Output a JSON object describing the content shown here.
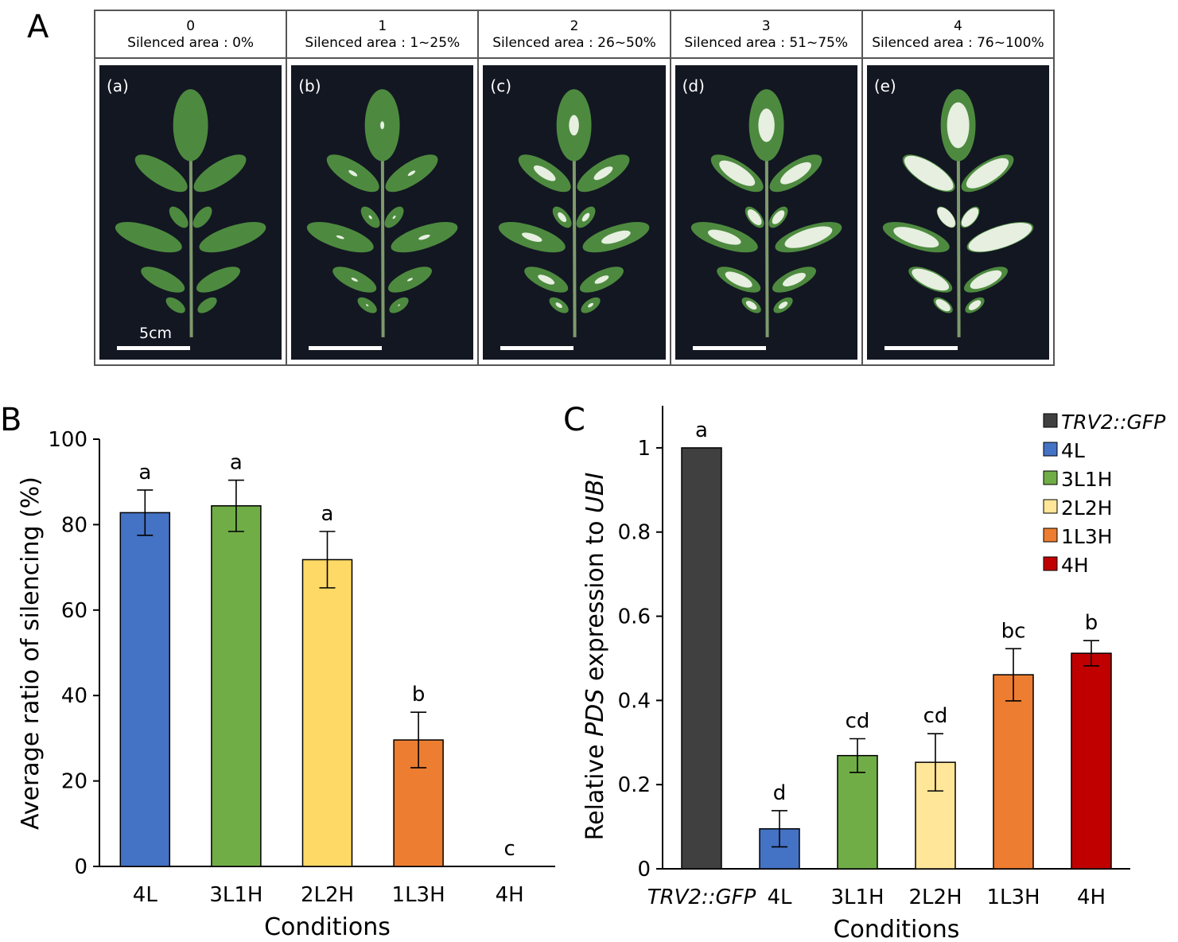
{
  "panels": {
    "a": "A",
    "b": "B",
    "c": "C"
  },
  "leaf_scores": [
    {
      "score": "0",
      "area": "Silenced area : 0%",
      "label": "(a)",
      "white_fraction": 0.0,
      "scale": "5cm"
    },
    {
      "score": "1",
      "area": "Silenced area : 1~25%",
      "label": "(b)",
      "white_fraction": 0.15
    },
    {
      "score": "2",
      "area": "Silenced area : 26~50%",
      "label": "(c)",
      "white_fraction": 0.38
    },
    {
      "score": "3",
      "area": "Silenced area : 51~75%",
      "label": "(d)",
      "white_fraction": 0.62
    },
    {
      "score": "4",
      "area": "Silenced area : 76~100%",
      "label": "(e)",
      "white_fraction": 0.85
    }
  ],
  "colors": {
    "4L": "#4472c4",
    "3L1H": "#70ad47",
    "2L2H": "#ffd966",
    "2L2H_light": "#ffe699",
    "1L3H": "#ed7d31",
    "4H": "#c00000",
    "TRV2::GFP": "#404040",
    "leaf_green": "#4d8a3f",
    "silenced": "#e6efe0"
  },
  "chart_data": [
    {
      "type": "bar",
      "panel": "B",
      "categories": [
        "4L",
        "3L1H",
        "2L2H",
        "1L3H",
        "4H"
      ],
      "values": [
        82.8,
        84.4,
        71.8,
        29.6,
        0
      ],
      "errors": [
        5.3,
        6.0,
        6.6,
        6.5,
        0
      ],
      "letters": [
        "a",
        "a",
        "a",
        "b",
        "c"
      ],
      "colors": [
        "#4472c4",
        "#70ad47",
        "#ffd966",
        "#ed7d31",
        "#c00000"
      ],
      "xlabel": "Conditions",
      "ylabel": "Average ratio of silencing (%)",
      "ylim": [
        0,
        100
      ],
      "yticks": [
        "0",
        "20",
        "40",
        "60",
        "80",
        "100"
      ],
      "grid": false
    },
    {
      "type": "bar",
      "panel": "C",
      "categories": [
        "TRV2::GFP",
        "4L",
        "3L1H",
        "2L2H",
        "1L3H",
        "4H"
      ],
      "values": [
        1.0,
        0.095,
        0.269,
        0.253,
        0.461,
        0.512
      ],
      "errors": [
        0,
        0.043,
        0.04,
        0.068,
        0.062,
        0.03
      ],
      "letters": [
        "a",
        "d",
        "cd",
        "cd",
        "bc",
        "b"
      ],
      "colors": [
        "#404040",
        "#4472c4",
        "#70ad47",
        "#ffe699",
        "#ed7d31",
        "#c00000"
      ],
      "xlabel": "Conditions",
      "ylabel_parts": [
        "Relative ",
        "PDS",
        " expression to ",
        "UBI"
      ],
      "ylim": [
        0,
        1.1
      ],
      "yticks": [
        "0",
        "0.2",
        "0.4",
        "0.6",
        "0.8",
        "1"
      ],
      "legend": [
        "TRV2::GFP",
        "4L",
        "3L1H",
        "2L2H",
        "1L3H",
        "4H"
      ],
      "legend_position": "top-right",
      "grid": false
    }
  ]
}
